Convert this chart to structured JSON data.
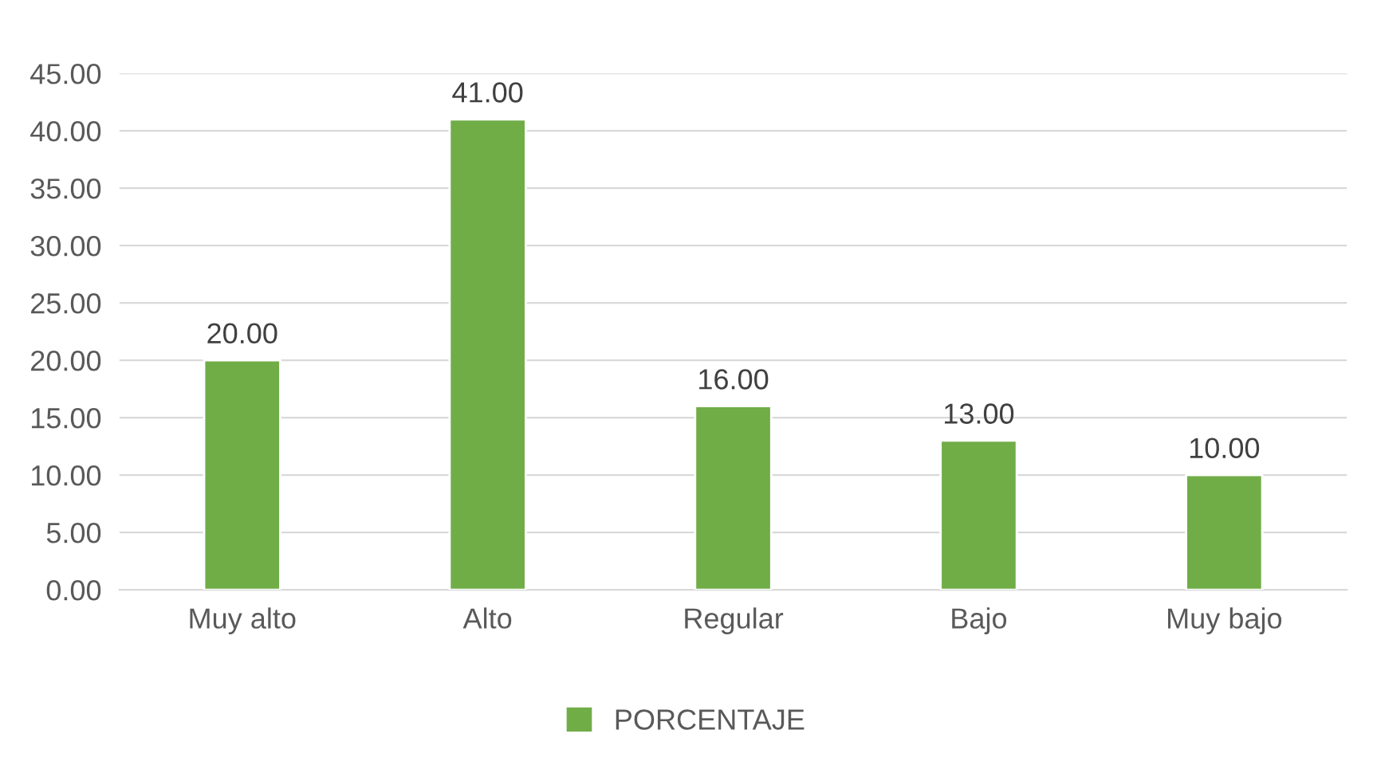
{
  "chart_data": {
    "type": "bar",
    "categories": [
      "Muy alto",
      "Alto",
      "Regular",
      "Bajo",
      "Muy bajo"
    ],
    "series": [
      {
        "name": "PORCENTAJE",
        "color": "#70ad47",
        "values": [
          20,
          41,
          16,
          13,
          10
        ],
        "value_labels": [
          "20.00",
          "41.00",
          "16.00",
          "13.00",
          "10.00"
        ]
      }
    ],
    "ylim": [
      0,
      45
    ],
    "yticks": [
      {
        "value": 0,
        "label": "0.00"
      },
      {
        "value": 5,
        "label": "5.00"
      },
      {
        "value": 10,
        "label": "10.00"
      },
      {
        "value": 15,
        "label": "15.00"
      },
      {
        "value": 20,
        "label": "20.00"
      },
      {
        "value": 25,
        "label": "25.00"
      },
      {
        "value": 30,
        "label": "30.00"
      },
      {
        "value": 35,
        "label": "35.00"
      },
      {
        "value": 40,
        "label": "40.00"
      },
      {
        "value": 45,
        "label": "45.00"
      }
    ],
    "grid": "y",
    "legend": "bottom"
  }
}
